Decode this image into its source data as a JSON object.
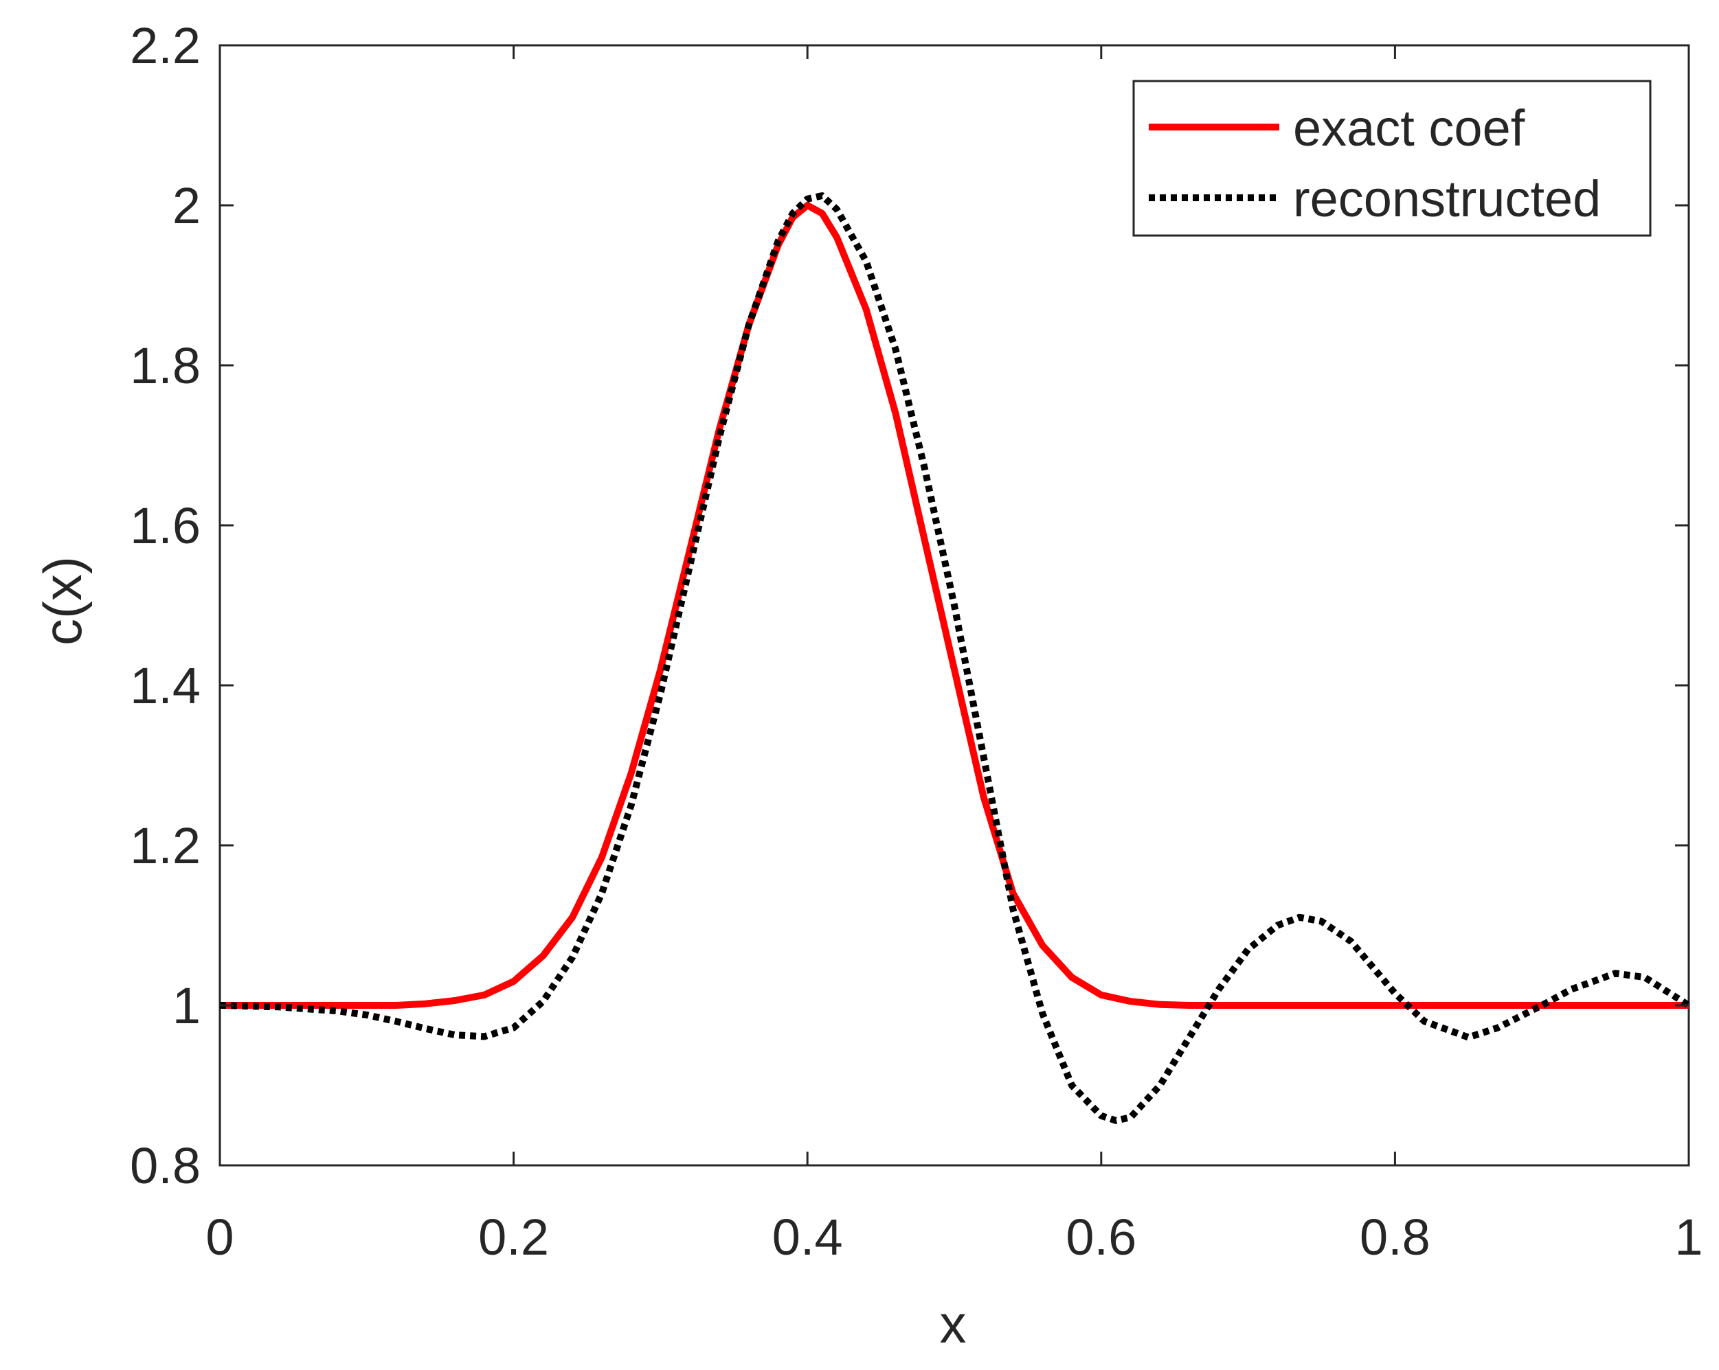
{
  "chart_data": {
    "type": "line",
    "title": "",
    "xlabel": "x",
    "ylabel": "c(x)",
    "xlim": [
      0,
      1
    ],
    "ylim": [
      0.8,
      2.2
    ],
    "xticks": [
      0,
      0.2,
      0.4,
      0.6,
      0.8,
      1
    ],
    "xtick_labels": [
      "0",
      "0.2",
      "0.4",
      "0.6",
      "0.8",
      "1"
    ],
    "yticks": [
      0.8,
      1.0,
      1.2,
      1.4,
      1.6,
      1.8,
      2.0,
      2.2
    ],
    "ytick_labels": [
      "0.8",
      "1",
      "1.2",
      "1.4",
      "1.6",
      "1.8",
      "2",
      "2.2"
    ],
    "grid": false,
    "legend_position": "top-right",
    "series": [
      {
        "name": "exact coef",
        "color": "#ff0000",
        "style": "solid",
        "x": [
          0,
          0.05,
          0.1,
          0.12,
          0.14,
          0.16,
          0.18,
          0.2,
          0.22,
          0.24,
          0.26,
          0.28,
          0.3,
          0.32,
          0.34,
          0.36,
          0.38,
          0.39,
          0.4,
          0.41,
          0.42,
          0.44,
          0.46,
          0.48,
          0.5,
          0.52,
          0.54,
          0.56,
          0.58,
          0.6,
          0.62,
          0.64,
          0.66,
          0.7,
          0.75,
          0.8,
          0.9,
          1.0
        ],
        "y": [
          1.0,
          1.0,
          1.0,
          1.0,
          1.002,
          1.006,
          1.013,
          1.03,
          1.062,
          1.11,
          1.185,
          1.29,
          1.42,
          1.57,
          1.72,
          1.85,
          1.95,
          1.985,
          2.0,
          1.99,
          1.96,
          1.87,
          1.74,
          1.58,
          1.42,
          1.26,
          1.14,
          1.075,
          1.035,
          1.013,
          1.005,
          1.001,
          1.0,
          1.0,
          1.0,
          1.0,
          1.0,
          1.0
        ]
      },
      {
        "name": "reconstructed",
        "color": "#000000",
        "style": "dotted",
        "x": [
          0,
          0.04,
          0.08,
          0.1,
          0.12,
          0.14,
          0.16,
          0.18,
          0.2,
          0.22,
          0.24,
          0.26,
          0.28,
          0.3,
          0.32,
          0.34,
          0.36,
          0.38,
          0.39,
          0.4,
          0.41,
          0.42,
          0.44,
          0.46,
          0.48,
          0.5,
          0.52,
          0.54,
          0.56,
          0.58,
          0.6,
          0.61,
          0.62,
          0.64,
          0.66,
          0.68,
          0.7,
          0.72,
          0.735,
          0.75,
          0.77,
          0.8,
          0.82,
          0.85,
          0.87,
          0.9,
          0.92,
          0.95,
          0.97,
          1.0
        ],
        "y": [
          1.0,
          0.998,
          0.993,
          0.988,
          0.98,
          0.971,
          0.963,
          0.961,
          0.972,
          1.005,
          1.06,
          1.14,
          1.25,
          1.39,
          1.55,
          1.71,
          1.85,
          1.955,
          1.99,
          2.008,
          2.012,
          1.995,
          1.93,
          1.82,
          1.67,
          1.5,
          1.31,
          1.12,
          0.99,
          0.9,
          0.862,
          0.856,
          0.86,
          0.9,
          0.96,
          1.02,
          1.07,
          1.1,
          1.11,
          1.105,
          1.08,
          1.015,
          0.98,
          0.96,
          0.972,
          1.0,
          1.02,
          1.04,
          1.035,
          1.0
        ]
      }
    ]
  }
}
